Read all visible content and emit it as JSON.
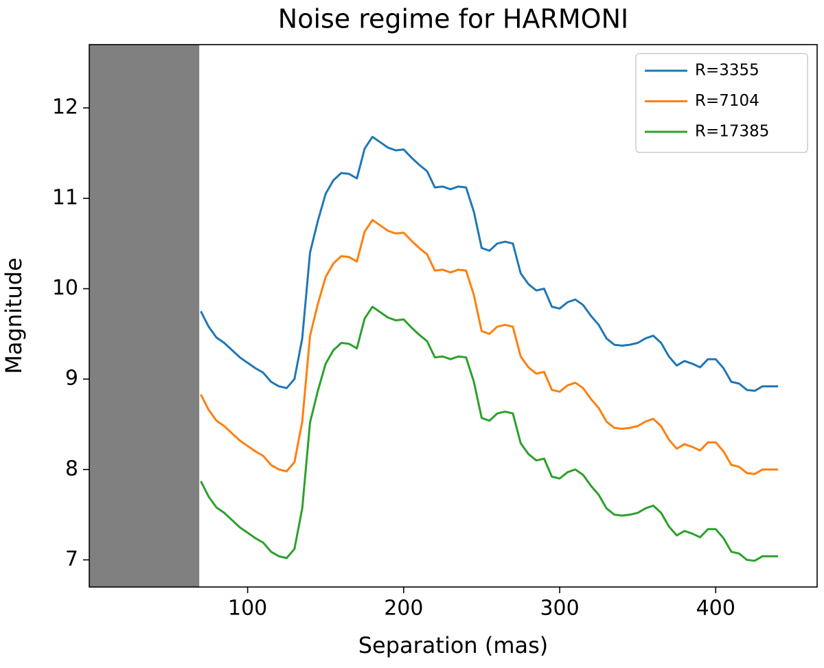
{
  "chart_data": {
    "type": "line",
    "title": "Noise regime for HARMONI",
    "x_label": "Separation (mas)",
    "y_label": "Magnitude",
    "xlim": [
      -1.5,
      465
    ],
    "ylim": [
      6.7,
      12.7
    ],
    "xticks": [
      100,
      200,
      300,
      400
    ],
    "yticks": [
      7,
      8,
      9,
      10,
      11,
      12
    ],
    "legend": "upper right",
    "shaded_region": {
      "x": [
        -1.5,
        69
      ],
      "color": "#808080"
    },
    "x": [
      70,
      75,
      80,
      85,
      90,
      95,
      100,
      105,
      110,
      115,
      120,
      125,
      130,
      135,
      140,
      145,
      150,
      155,
      160,
      165,
      170,
      175,
      180,
      185,
      190,
      195,
      200,
      205,
      210,
      215,
      220,
      225,
      230,
      235,
      240,
      245,
      250,
      255,
      260,
      265,
      270,
      275,
      280,
      285,
      290,
      295,
      300,
      305,
      310,
      315,
      320,
      325,
      330,
      335,
      340,
      345,
      350,
      355,
      360,
      365,
      370,
      375,
      380,
      385,
      390,
      395,
      400,
      405,
      410,
      415,
      420,
      425,
      430,
      435,
      440
    ],
    "series": [
      {
        "name": "R=3355",
        "color": "#1f77b4",
        "values": [
          9.75,
          9.58,
          9.46,
          9.4,
          9.32,
          9.24,
          9.18,
          9.12,
          9.07,
          8.97,
          8.92,
          8.9,
          9.0,
          9.45,
          10.4,
          10.75,
          11.05,
          11.2,
          11.28,
          11.27,
          11.22,
          11.55,
          11.68,
          11.62,
          11.56,
          11.53,
          11.54,
          11.45,
          11.37,
          11.3,
          11.12,
          11.13,
          11.1,
          11.13,
          11.12,
          10.85,
          10.45,
          10.42,
          10.5,
          10.52,
          10.5,
          10.17,
          10.05,
          9.98,
          10.0,
          9.8,
          9.78,
          9.85,
          9.88,
          9.82,
          9.7,
          9.6,
          9.45,
          9.38,
          9.37,
          9.38,
          9.4,
          9.45,
          9.48,
          9.4,
          9.25,
          9.15,
          9.2,
          9.17,
          9.13,
          9.22,
          9.22,
          9.12,
          8.97,
          8.95,
          8.88,
          8.87,
          8.92,
          8.92,
          8.92
        ]
      },
      {
        "name": "R=7104",
        "color": "#ff7f0e",
        "values": [
          8.83,
          8.66,
          8.54,
          8.48,
          8.4,
          8.32,
          8.26,
          8.2,
          8.15,
          8.05,
          8.0,
          7.98,
          8.08,
          8.53,
          9.48,
          9.83,
          10.13,
          10.28,
          10.36,
          10.35,
          10.3,
          10.63,
          10.76,
          10.7,
          10.64,
          10.61,
          10.62,
          10.53,
          10.45,
          10.38,
          10.2,
          10.21,
          10.18,
          10.21,
          10.2,
          9.93,
          9.53,
          9.5,
          9.58,
          9.6,
          9.58,
          9.25,
          9.13,
          9.06,
          9.08,
          8.88,
          8.86,
          8.93,
          8.96,
          8.9,
          8.78,
          8.68,
          8.53,
          8.46,
          8.45,
          8.46,
          8.48,
          8.53,
          8.56,
          8.48,
          8.33,
          8.23,
          8.28,
          8.25,
          8.21,
          8.3,
          8.3,
          8.2,
          8.05,
          8.03,
          7.96,
          7.95,
          8.0,
          8.0,
          8.0
        ]
      },
      {
        "name": "R=17385",
        "color": "#2ca02c",
        "values": [
          7.87,
          7.7,
          7.58,
          7.52,
          7.44,
          7.36,
          7.3,
          7.24,
          7.19,
          7.09,
          7.04,
          7.02,
          7.12,
          7.57,
          8.52,
          8.87,
          9.17,
          9.32,
          9.4,
          9.39,
          9.34,
          9.67,
          9.8,
          9.74,
          9.68,
          9.65,
          9.66,
          9.57,
          9.49,
          9.42,
          9.24,
          9.25,
          9.22,
          9.25,
          9.24,
          8.97,
          8.57,
          8.54,
          8.62,
          8.64,
          8.62,
          8.29,
          8.17,
          8.1,
          8.12,
          7.92,
          7.9,
          7.97,
          8.0,
          7.94,
          7.82,
          7.72,
          7.57,
          7.5,
          7.49,
          7.5,
          7.52,
          7.57,
          7.6,
          7.52,
          7.37,
          7.27,
          7.32,
          7.29,
          7.25,
          7.34,
          7.34,
          7.24,
          7.09,
          7.07,
          7.0,
          6.99,
          7.04,
          7.04,
          7.04
        ]
      }
    ]
  }
}
